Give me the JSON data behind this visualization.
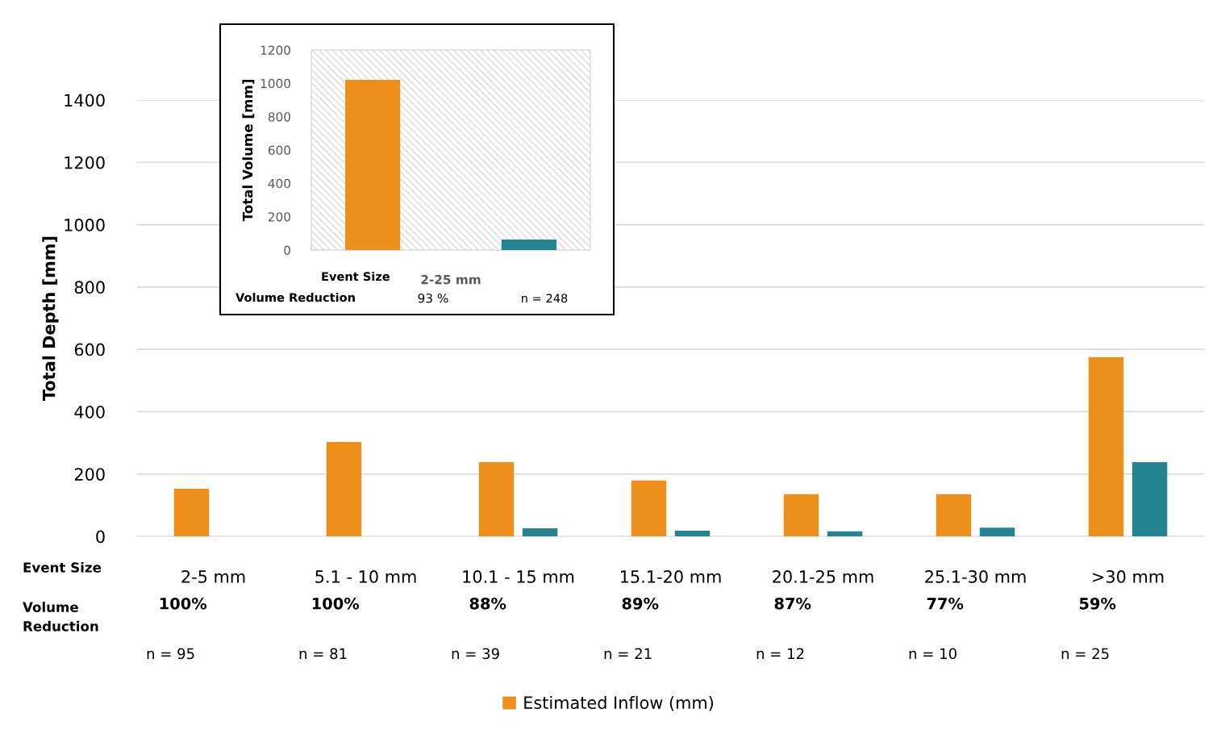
{
  "chart_data": [
    {
      "type": "bar",
      "ylabel": "Total Depth [mm]",
      "categories": [
        "2-5 mm",
        "5.1 - 10 mm",
        "10.1 - 15 mm",
        "15.1-20 mm",
        "20.1-25 mm",
        "25.1-30 mm",
        ">30 mm"
      ],
      "series": [
        {
          "name": "Estimated Inflow (mm)",
          "color": "#ed8f1a",
          "values": [
            153,
            303,
            238,
            179,
            135,
            135,
            575
          ]
        },
        {
          "color": "#23838f",
          "values": [
            null,
            null,
            26,
            18,
            16,
            28,
            238
          ]
        }
      ],
      "ylim": [
        0,
        1400
      ],
      "yticks": [
        0,
        200,
        400,
        600,
        800,
        1000,
        1200,
        1400
      ],
      "grid": "y",
      "legend": "bottom",
      "annotations": [
        "Event Size",
        "Volume\nReduction",
        "100%",
        "100%",
        "88%",
        "89%",
        "87%",
        "77%",
        "59%",
        "n = 95",
        "n = 81",
        "n = 39",
        "n = 21",
        "n = 12",
        "n = 10",
        "n = 25"
      ]
    },
    {
      "type": "bar",
      "ylabel": "Total Volume [mm]",
      "categories": [
        "2-25 mm"
      ],
      "series": [
        {
          "color": "#ed8f1a",
          "values": [
            1021
          ]
        },
        {
          "color": "#23838f",
          "values": [
            63
          ]
        }
      ],
      "ylim": [
        0,
        1200
      ],
      "yticks": [
        0,
        200,
        400,
        600,
        800,
        1000,
        1200
      ],
      "grid": false,
      "legend": false,
      "annotations": [
        "Event Size",
        "Volume Reduction",
        "93 %",
        "n = 248"
      ]
    }
  ]
}
